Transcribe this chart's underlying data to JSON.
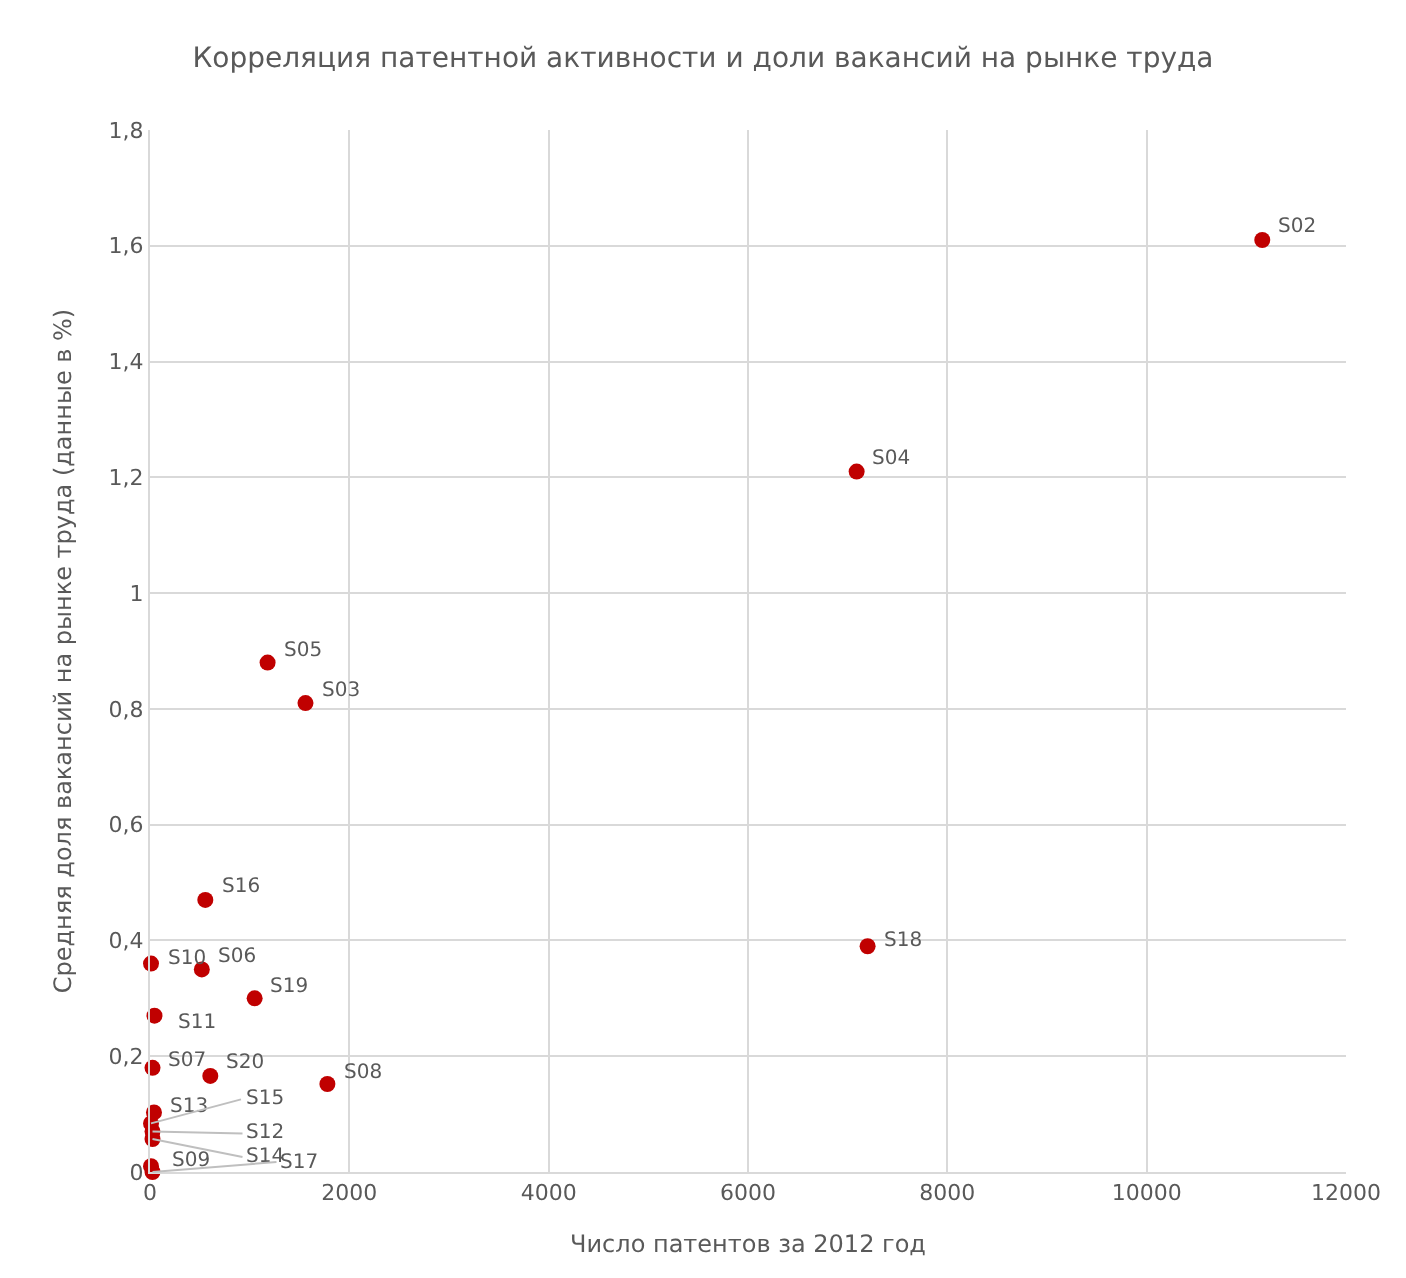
{
  "chart_data": {
    "type": "scatter",
    "title": "Корреляция патентной активности и доли вакансий на рынке труда",
    "xlabel": "Число патентов за 2012 год",
    "ylabel": "Средняя доля вакансий на рынке труда (данные в %)",
    "x": [
      11160,
      1560,
      7090,
      1180,
      520,
      25,
      1780,
      10,
      10,
      45,
      25,
      40,
      25,
      10,
      555,
      25,
      7200,
      1050,
      605
    ],
    "series": [
      {
        "color": "#c00000",
        "values": [
          1.61,
          0.81,
          1.21,
          0.88,
          0.35,
          0.18,
          0.152,
          0.01,
          0.36,
          0.27,
          0.07,
          0.103,
          0.057,
          0.084,
          0.47,
          0.0,
          0.39,
          0.3,
          0.166
        ],
        "value_labels": [
          "S02",
          "S03",
          "S04",
          "S05",
          "S06",
          "S07",
          "S08",
          "S09",
          "S10",
          "S11",
          "S12",
          "S13",
          "S14",
          "S15",
          "S16",
          "S17",
          "S18",
          "S19",
          "S20"
        ]
      }
    ],
    "xlim": [
      0,
      12000
    ],
    "xticks": [
      0,
      2000,
      4000,
      6000,
      8000,
      10000,
      12000
    ],
    "ylim": [
      0,
      1.8
    ],
    "yticks": [
      0,
      {
        "value": 0.2,
        "label": "0,2"
      },
      {
        "value": 0.4,
        "label": "0,4"
      },
      {
        "value": 0.6,
        "label": "0,6"
      },
      {
        "value": 0.8,
        "label": "0,8"
      },
      1,
      {
        "value": 1.2,
        "label": "1,2"
      },
      {
        "value": 1.4,
        "label": "1,4"
      },
      {
        "value": 1.6,
        "label": "1,6"
      },
      {
        "value": 1.8,
        "label": "1,8"
      }
    ],
    "grid": true,
    "marker": "circle"
  }
}
